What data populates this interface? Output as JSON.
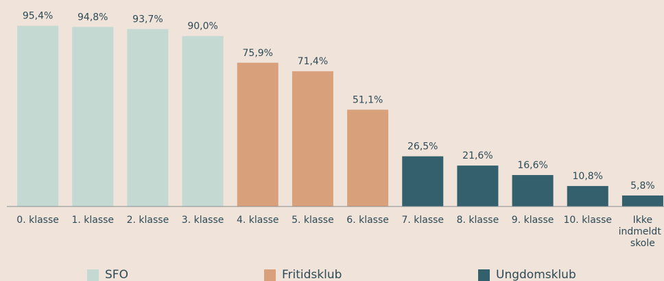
{
  "chart_data": {
    "type": "bar",
    "categories": [
      "0. klasse",
      "1. klasse",
      "2. klasse",
      "3. klasse",
      "4. klasse",
      "5. klasse",
      "6. klasse",
      "7. klasse",
      "8. klasse",
      "9. klasse",
      "10. klasse",
      "Ikke indmeldt i skole"
    ],
    "series": [
      {
        "name": "SFO",
        "color": "#c5d9d3",
        "values": [
          95.4,
          94.8,
          93.7,
          90.0,
          null,
          null,
          null,
          null,
          null,
          null,
          null,
          null
        ],
        "value_labels": [
          "95,4%",
          "94,8%",
          "93,7%",
          "90,0%",
          null,
          null,
          null,
          null,
          null,
          null,
          null,
          null
        ]
      },
      {
        "name": "Fritidsklub",
        "color": "#d9a07c",
        "values": [
          null,
          null,
          null,
          null,
          75.9,
          71.4,
          51.1,
          null,
          null,
          null,
          null,
          null
        ],
        "value_labels": [
          null,
          null,
          null,
          null,
          "75,9%",
          "71,4%",
          "51,1%",
          null,
          null,
          null,
          null,
          null
        ]
      },
      {
        "name": "Ungdomsklub",
        "color": "#345f6d",
        "values": [
          null,
          null,
          null,
          null,
          null,
          null,
          null,
          26.5,
          21.6,
          16.6,
          10.8,
          5.8
        ],
        "value_labels": [
          null,
          null,
          null,
          null,
          null,
          null,
          null,
          "26,5%",
          "21,6%",
          "16,6%",
          "10,8%",
          "5,8%"
        ]
      }
    ],
    "ylim": [
      0,
      100
    ]
  }
}
